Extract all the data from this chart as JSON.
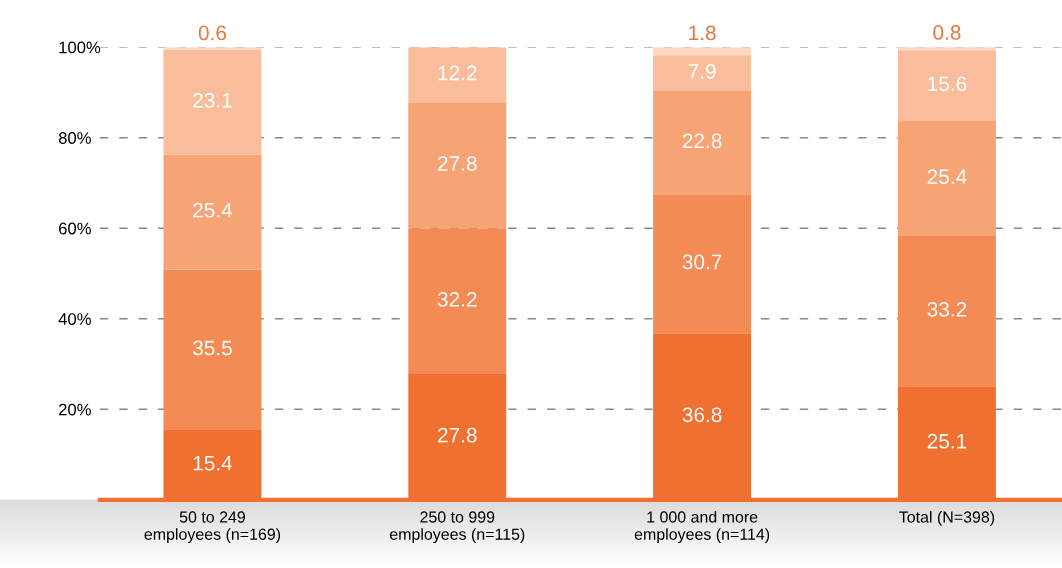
{
  "chart_data": {
    "type": "bar",
    "stacked": true,
    "categories": [
      "50 to 249\nemployees (n=169)",
      "250 to 999\nemployees (n=115)",
      "1 000 and more\nemployees (n=114)",
      "Total (N=398)"
    ],
    "series": [
      {
        "color": "#f07032",
        "values": [
          15.4,
          27.8,
          36.8,
          25.1
        ]
      },
      {
        "color": "#f48b55",
        "values": [
          35.5,
          32.2,
          30.7,
          33.2
        ]
      },
      {
        "color": "#f6a376",
        "values": [
          25.4,
          27.8,
          22.8,
          25.4
        ]
      },
      {
        "color": "#f9bd9b",
        "values": [
          23.1,
          12.2,
          7.9,
          15.6
        ]
      },
      {
        "color": "#fcd8c2",
        "values": [
          0.6,
          null,
          1.8,
          0.8
        ]
      }
    ],
    "ylim": [
      0,
      100
    ],
    "yticks": [
      {
        "value": 20,
        "label": "20%"
      },
      {
        "value": 40,
        "label": "40%"
      },
      {
        "value": 60,
        "label": "60%"
      },
      {
        "value": 80,
        "label": "80%"
      },
      {
        "value": 100,
        "label": "100%"
      }
    ],
    "grid": "y",
    "data_labels": true
  }
}
